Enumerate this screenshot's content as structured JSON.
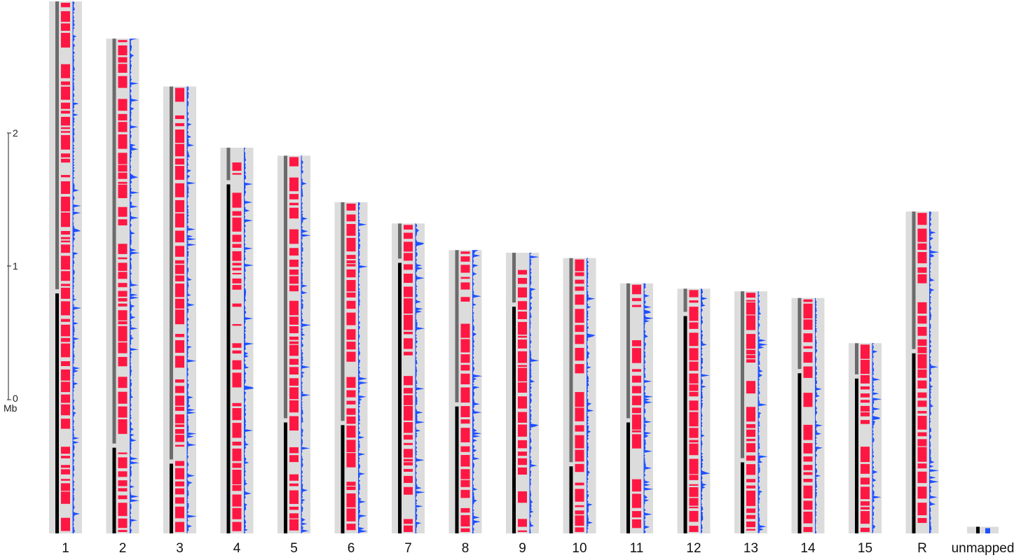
{
  "figure": {
    "axis": {
      "unit_label": "Mb",
      "ticks": [
        {
          "value": 0,
          "label": "0"
        },
        {
          "value": 1,
          "label": "1"
        },
        {
          "value": 2,
          "label": "2"
        }
      ]
    },
    "colors": {
      "background_panel": "#dcdcdc",
      "arm_dark": "#000000",
      "arm_light": "#6b6b6b",
      "feature": "#ff1744",
      "density": "#1e50ff"
    },
    "chromosomes": [
      {
        "label": "1",
        "length_mb": 4.0,
        "arm_split_mb": 1.82
      },
      {
        "label": "2",
        "length_mb": 3.72,
        "arm_split_mb": 0.66
      },
      {
        "label": "3",
        "length_mb": 3.36,
        "arm_split_mb": 0.54
      },
      {
        "label": "4",
        "length_mb": 2.9,
        "arm_split_mb": 2.64
      },
      {
        "label": "5",
        "length_mb": 2.84,
        "arm_split_mb": 0.85
      },
      {
        "label": "6",
        "length_mb": 2.49,
        "arm_split_mb": 0.83
      },
      {
        "label": "7",
        "length_mb": 2.33,
        "arm_split_mb": 2.05
      },
      {
        "label": "8",
        "length_mb": 2.13,
        "arm_split_mb": 0.97
      },
      {
        "label": "9",
        "length_mb": 2.11,
        "arm_split_mb": 1.72
      },
      {
        "label": "10",
        "length_mb": 2.07,
        "arm_split_mb": 0.52
      },
      {
        "label": "11",
        "length_mb": 1.88,
        "arm_split_mb": 0.85
      },
      {
        "label": "12",
        "length_mb": 1.84,
        "arm_split_mb": 1.65
      },
      {
        "label": "13",
        "length_mb": 1.82,
        "arm_split_mb": 0.55
      },
      {
        "label": "14",
        "length_mb": 1.77,
        "arm_split_mb": 1.22
      },
      {
        "label": "15",
        "length_mb": 1.43,
        "arm_split_mb": 1.18
      },
      {
        "label": "R",
        "length_mb": 2.42,
        "arm_split_mb": 1.37
      },
      {
        "label": "unmapped",
        "length_mb": 0.05,
        "arm_split_mb": null
      }
    ]
  }
}
